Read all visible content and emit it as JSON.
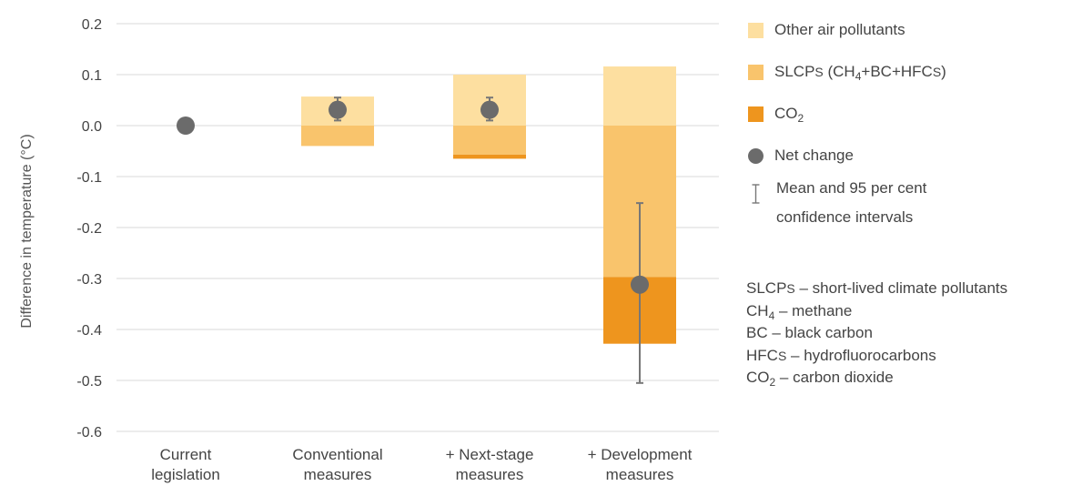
{
  "chart_data": {
    "type": "bar",
    "ylabel": "Difference in temperature (°C)",
    "ylim": [
      -0.6,
      0.2
    ],
    "yticks": [
      "0.2",
      "0.1",
      "0.0",
      "-0.1",
      "-0.2",
      "-0.3",
      "-0.4",
      "-0.5",
      "-0.6"
    ],
    "ytick_values": [
      0.2,
      0.1,
      0.0,
      -0.1,
      -0.2,
      -0.3,
      -0.4,
      -0.5,
      -0.6
    ],
    "grid": true,
    "legend_position": "right",
    "categories": [
      [
        "Current",
        "legislation"
      ],
      [
        "Conventional",
        "measures"
      ],
      [
        "+ Next-stage",
        "measures"
      ],
      [
        "+ Development",
        "measures"
      ]
    ],
    "series": [
      {
        "name": "Other air pollutants",
        "color": "#FDDFA0",
        "values": [
          0,
          0.057,
          0.1,
          0.116
        ]
      },
      {
        "name": "SLCPs (CH4+BC+HFCs)",
        "color": "#F9C46C",
        "values": [
          0,
          -0.04,
          -0.057,
          -0.297
        ]
      },
      {
        "name": "CO2",
        "color": "#EE951E",
        "values": [
          0,
          0,
          -0.008,
          -0.131
        ]
      }
    ],
    "net_change": {
      "name": "Net change",
      "color": "#6B6B6B",
      "values": [
        0,
        0.031,
        0.031,
        -0.312
      ],
      "ci_low": [
        null,
        0.01,
        0.01,
        -0.505
      ],
      "ci_high": [
        null,
        0.055,
        0.055,
        -0.152
      ]
    }
  },
  "legend": {
    "other": "Other air pollutants",
    "slcp_main": "SLCP",
    "slcp_s": "S",
    "slcp_open": " (CH",
    "slcp_sub4": "4",
    "slcp_rest": "+BC+HFC",
    "slcp_s2": "S",
    "slcp_close": ")",
    "co2_main": "CO",
    "co2_sub": "2",
    "net": "Net change",
    "mean_line1": "Mean and 95 per cent",
    "mean_line2": "confidence intervals"
  },
  "notes": {
    "slcp_a": "SLCP",
    "slcp_b": "S",
    "slcp_c": " – short-lived climate pollutants",
    "ch4_a": "CH",
    "ch4_sub": "4",
    "ch4_c": " – methane",
    "bc": "BC – black carbon",
    "hfc_a": "HFC",
    "hfc_b": "S",
    "hfc_c": " – hydrofluorocarbons",
    "co2_a": "CO",
    "co2_sub": "2",
    "co2_c": " – carbon dioxide"
  }
}
